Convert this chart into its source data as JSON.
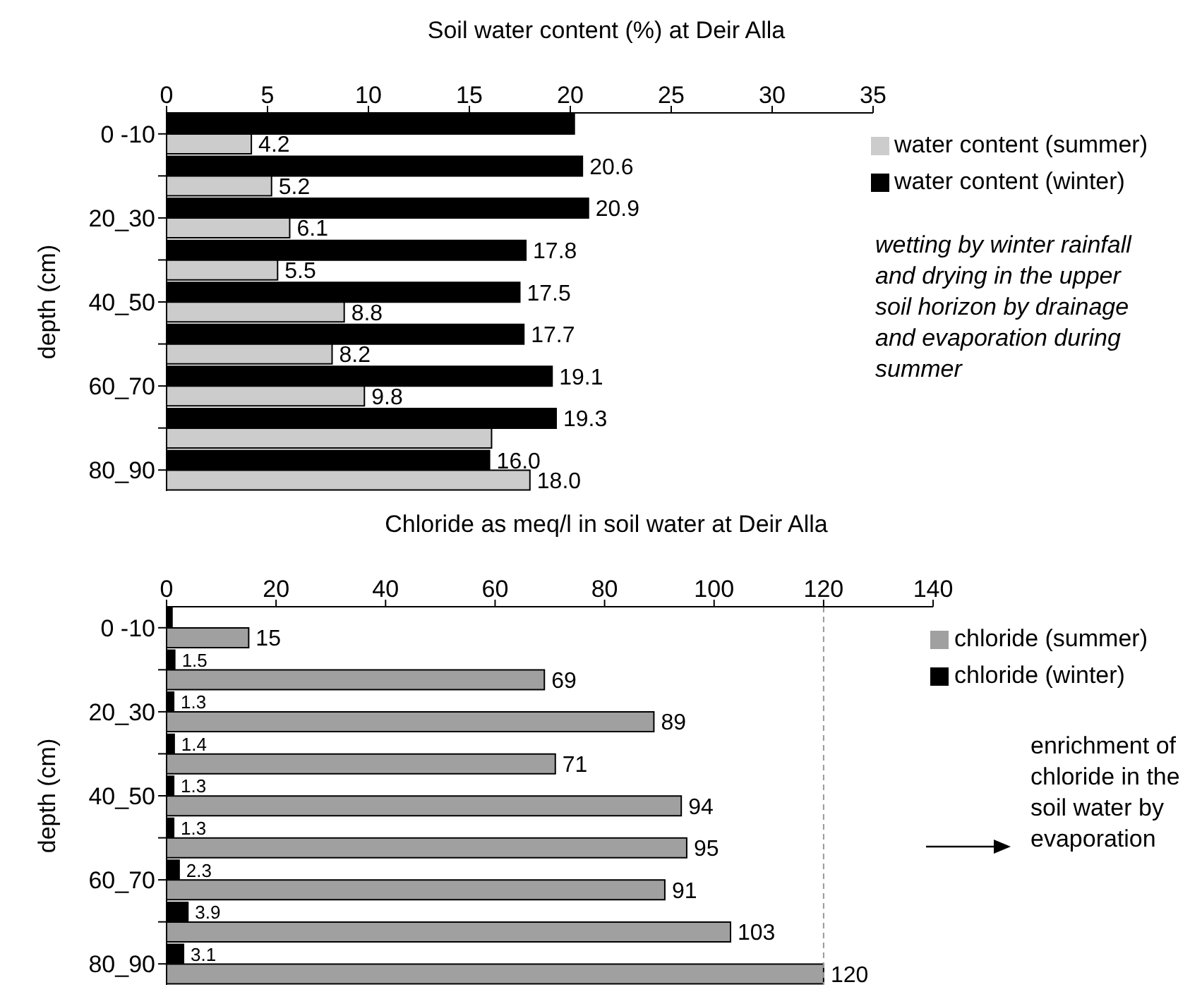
{
  "chart_data": [
    {
      "type": "bar",
      "orientation": "horizontal",
      "title": "Soil water content (%) at Deir Alla",
      "ylabel": "depth (cm)",
      "categories": [
        "0 -10",
        null,
        "20_30",
        null,
        "40_50",
        null,
        "60_70",
        null,
        "80_90"
      ],
      "series": [
        {
          "name": "water content (winter)",
          "color": "#000000",
          "values": [
            20.2,
            20.6,
            20.9,
            17.8,
            17.5,
            17.7,
            19.1,
            19.3,
            16.0
          ],
          "value_labels": [
            null,
            "20.6",
            "20.9",
            "17.8",
            "17.5",
            "17.7",
            "19.1",
            "19.3",
            "16.0"
          ]
        },
        {
          "name": "water content (summer)",
          "color": "#cccccc",
          "values": [
            4.2,
            5.2,
            6.1,
            5.5,
            8.8,
            8.2,
            9.8,
            16.1,
            18.0
          ],
          "value_labels": [
            "4.2",
            "5.2",
            "6.1",
            "5.5",
            "8.8",
            "8.2",
            "9.8",
            null,
            "18.0"
          ]
        }
      ],
      "xlim": [
        0,
        35
      ],
      "xticks": [
        0,
        5,
        10,
        15,
        20,
        25,
        30,
        35
      ],
      "grid": false,
      "legend": "top right",
      "annotations": [
        "wetting by winter rainfall and drying in the upper soil horizon by drainage and evaporation during summer"
      ]
    },
    {
      "type": "bar",
      "orientation": "horizontal",
      "title": "Chloride as meq/l in soil water at Deir Alla",
      "ylabel": "depth (cm)",
      "categories": [
        "0 -10",
        null,
        "20_30",
        null,
        "40_50",
        null,
        "60_70",
        null,
        "80_90"
      ],
      "series": [
        {
          "name": "chloride (winter)",
          "color": "#000000",
          "values": [
            1.0,
            1.5,
            1.3,
            1.4,
            1.3,
            1.3,
            2.3,
            3.9,
            3.1
          ],
          "value_labels": [
            null,
            "1.5",
            "1.3",
            "1.4",
            "1.3",
            "1.3",
            "2.3",
            "3.9",
            "3.1"
          ]
        },
        {
          "name": "chloride (summer)",
          "color": "#a0a0a0",
          "values": [
            15,
            69,
            89,
            71,
            94,
            95,
            91,
            103,
            120
          ],
          "value_labels": [
            "15",
            "69",
            "89",
            "71",
            "94",
            "95",
            "91",
            "103",
            "120"
          ]
        }
      ],
      "xlim": [
        0,
        140
      ],
      "xticks": [
        0,
        20,
        40,
        60,
        80,
        100,
        120,
        140
      ],
      "grid": false,
      "legend": "top right",
      "ref_lines": [
        {
          "axis": "x",
          "value": 120,
          "color": "#999999",
          "line_style": "dashed"
        }
      ],
      "annotations": [
        "enrichment of chloride in the soil water by evaporation"
      ]
    }
  ]
}
